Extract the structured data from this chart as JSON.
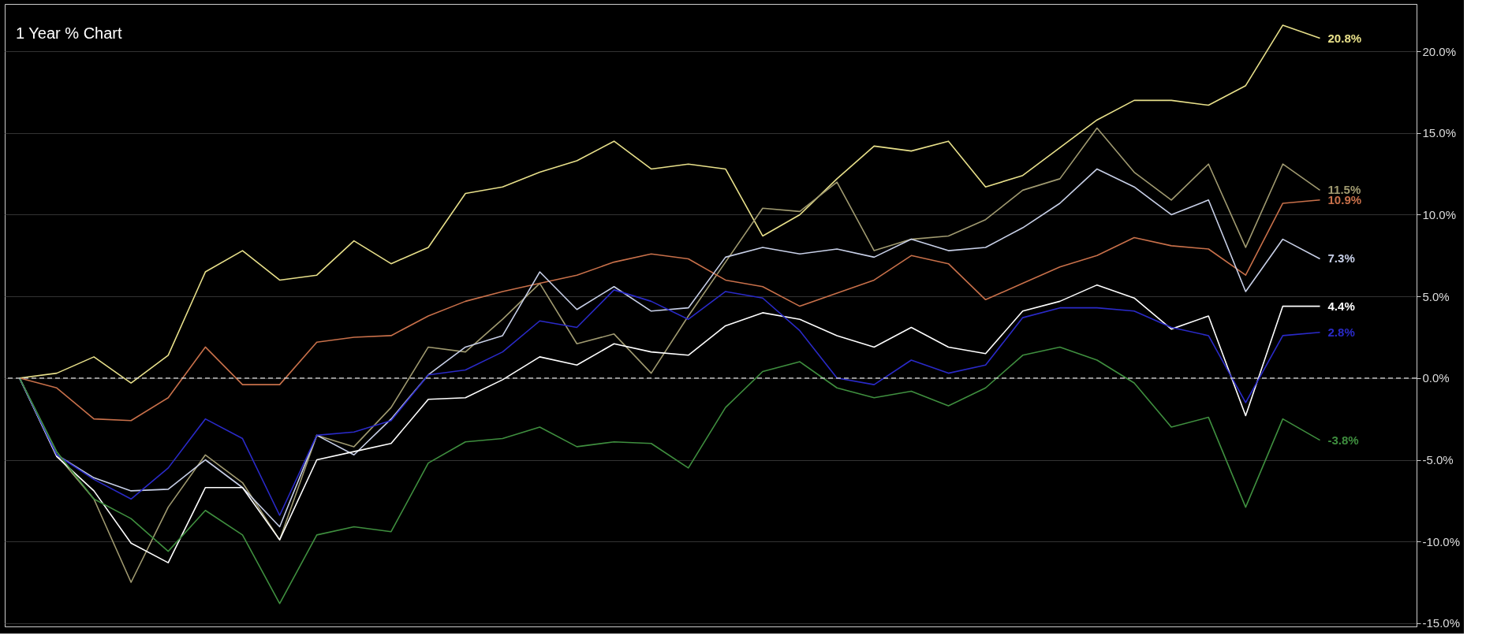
{
  "chart_data": {
    "type": "line",
    "title": "1 Year % Chart",
    "categories": [
      null,
      null,
      null,
      null,
      null,
      null,
      null,
      null,
      null,
      null,
      null,
      null,
      null,
      null,
      null,
      null,
      null,
      null,
      null,
      null,
      null,
      null,
      null,
      null,
      null,
      null,
      null,
      null,
      null,
      null,
      null,
      null,
      null,
      null,
      null,
      null
    ],
    "series": [
      {
        "color": "#e8e08a",
        "values": [
          0,
          0.3,
          1.3,
          -0.3,
          1.4,
          6.5,
          7.8,
          6.0,
          6.3,
          8.4,
          7.0,
          8.0,
          11.3,
          11.7,
          12.6,
          13.3,
          14.5,
          12.8,
          13.1,
          12.8,
          8.7,
          10.0,
          12.2,
          14.2,
          13.9,
          14.5,
          11.7,
          12.4,
          14.1,
          15.8,
          17.0,
          17.0,
          16.7,
          17.9,
          21.6,
          20.8
        ],
        "value_labels": [
          null,
          null,
          null,
          null,
          null,
          null,
          null,
          null,
          null,
          null,
          null,
          null,
          null,
          null,
          null,
          null,
          null,
          null,
          null,
          null,
          null,
          null,
          null,
          null,
          null,
          null,
          null,
          null,
          null,
          null,
          null,
          null,
          null,
          null,
          null,
          "20.8%"
        ]
      },
      {
        "color": "#a09a70",
        "values": [
          0,
          -4.7,
          -7.4,
          -12.5,
          -7.9,
          -4.7,
          -6.4,
          -9.9,
          -3.5,
          -4.2,
          -1.8,
          1.9,
          1.6,
          3.6,
          5.8,
          2.1,
          2.7,
          0.3,
          3.8,
          7.1,
          10.4,
          10.2,
          12.0,
          7.8,
          8.5,
          8.7,
          9.7,
          11.5,
          12.2,
          15.3,
          12.6,
          10.9,
          13.1,
          8.0,
          13.1,
          11.5
        ],
        "value_labels": [
          null,
          null,
          null,
          null,
          null,
          null,
          null,
          null,
          null,
          null,
          null,
          null,
          null,
          null,
          null,
          null,
          null,
          null,
          null,
          null,
          null,
          null,
          null,
          null,
          null,
          null,
          null,
          null,
          null,
          null,
          null,
          null,
          null,
          null,
          null,
          "11.5%"
        ]
      },
      {
        "color": "#c8704a",
        "values": [
          0,
          -0.6,
          -2.5,
          -2.6,
          -1.2,
          1.9,
          -0.4,
          -0.4,
          2.2,
          2.5,
          2.6,
          3.8,
          4.7,
          5.3,
          5.8,
          6.3,
          7.1,
          7.6,
          7.3,
          6.0,
          5.6,
          4.4,
          5.2,
          6.0,
          7.5,
          7.0,
          4.8,
          5.8,
          6.8,
          7.5,
          8.6,
          8.1,
          7.9,
          6.3,
          10.7,
          10.9
        ],
        "value_labels": [
          null,
          null,
          null,
          null,
          null,
          null,
          null,
          null,
          null,
          null,
          null,
          null,
          null,
          null,
          null,
          null,
          null,
          null,
          null,
          null,
          null,
          null,
          null,
          null,
          null,
          null,
          null,
          null,
          null,
          null,
          null,
          null,
          null,
          null,
          null,
          "10.9%"
        ]
      },
      {
        "color": "#c8d0e8",
        "values": [
          0,
          -4.7,
          -6.1,
          -6.9,
          -6.8,
          -5.0,
          -6.7,
          -9.1,
          -3.5,
          -4.7,
          -2.5,
          0.2,
          1.9,
          2.6,
          6.5,
          4.2,
          5.6,
          4.1,
          4.3,
          7.4,
          8.0,
          7.6,
          7.9,
          7.4,
          8.5,
          7.8,
          8.0,
          9.2,
          10.7,
          12.8,
          11.7,
          10.0,
          10.9,
          5.3,
          8.5,
          7.3
        ],
        "value_labels": [
          null,
          null,
          null,
          null,
          null,
          null,
          null,
          null,
          null,
          null,
          null,
          null,
          null,
          null,
          null,
          null,
          null,
          null,
          null,
          null,
          null,
          null,
          null,
          null,
          null,
          null,
          null,
          null,
          null,
          null,
          null,
          null,
          null,
          null,
          null,
          "7.3%"
        ]
      },
      {
        "color": "#ffffff",
        "values": [
          0,
          -4.8,
          -6.9,
          -10.1,
          -11.3,
          -6.7,
          -6.7,
          -9.9,
          -5.0,
          -4.5,
          -4.0,
          -1.3,
          -1.2,
          -0.1,
          1.3,
          0.8,
          2.1,
          1.6,
          1.4,
          3.2,
          4.0,
          3.6,
          2.6,
          1.9,
          3.1,
          1.9,
          1.5,
          4.1,
          4.7,
          5.7,
          4.9,
          3.0,
          3.8,
          -2.3,
          4.4,
          4.4
        ],
        "value_labels": [
          null,
          null,
          null,
          null,
          null,
          null,
          null,
          null,
          null,
          null,
          null,
          null,
          null,
          null,
          null,
          null,
          null,
          null,
          null,
          null,
          null,
          null,
          null,
          null,
          null,
          null,
          null,
          null,
          null,
          null,
          null,
          null,
          null,
          null,
          null,
          "4.4%"
        ]
      },
      {
        "color": "#2a2ac8",
        "values": [
          0,
          -4.7,
          -6.2,
          -7.4,
          -5.5,
          -2.5,
          -3.7,
          -8.4,
          -3.5,
          -3.3,
          -2.6,
          0.2,
          0.5,
          1.6,
          3.5,
          3.1,
          5.4,
          4.7,
          3.6,
          5.3,
          4.9,
          2.9,
          0.0,
          -0.4,
          1.1,
          0.3,
          0.8,
          3.7,
          4.3,
          4.3,
          4.1,
          3.1,
          2.6,
          -1.5,
          2.6,
          2.8
        ],
        "value_labels": [
          null,
          null,
          null,
          null,
          null,
          null,
          null,
          null,
          null,
          null,
          null,
          null,
          null,
          null,
          null,
          null,
          null,
          null,
          null,
          null,
          null,
          null,
          null,
          null,
          null,
          null,
          null,
          null,
          null,
          null,
          null,
          null,
          null,
          null,
          null,
          "2.8%"
        ]
      },
      {
        "color": "#3f8f3f",
        "values": [
          0,
          -4.5,
          -7.4,
          -8.6,
          -10.6,
          -8.1,
          -9.6,
          -13.8,
          -9.6,
          -9.1,
          -9.4,
          -5.2,
          -3.9,
          -3.7,
          -3.0,
          -4.2,
          -3.9,
          -4.0,
          -5.5,
          -1.8,
          0.4,
          1.0,
          -0.6,
          -1.2,
          -0.8,
          -1.7,
          -0.6,
          1.4,
          1.9,
          1.1,
          -0.3,
          -3.0,
          -2.4,
          -7.9,
          -2.5,
          -3.8
        ],
        "value_labels": [
          null,
          null,
          null,
          null,
          null,
          null,
          null,
          null,
          null,
          null,
          null,
          null,
          null,
          null,
          null,
          null,
          null,
          null,
          null,
          null,
          null,
          null,
          null,
          null,
          null,
          null,
          null,
          null,
          null,
          null,
          null,
          null,
          null,
          null,
          null,
          "-3.8%"
        ]
      }
    ],
    "ylim": [
      -15.2,
      22.9
    ],
    "yticks": [
      {
        "value": -15,
        "label": "-15.0%"
      },
      {
        "value": -10,
        "label": "-10.0%"
      },
      {
        "value": -5,
        "label": "-5.0%"
      },
      {
        "value": 0,
        "label": "0.0%"
      },
      {
        "value": 5,
        "label": "5.0%"
      },
      {
        "value": 10,
        "label": "10.0%"
      },
      {
        "value": 15,
        "label": "15.0%"
      },
      {
        "value": 20,
        "label": "20.0%"
      }
    ],
    "ref_lines": [
      {
        "axis": "y",
        "value": 0,
        "color": "#dddddd",
        "line_style": "dashed"
      }
    ],
    "grid": "y",
    "line_style": "solid",
    "marker": "none"
  }
}
